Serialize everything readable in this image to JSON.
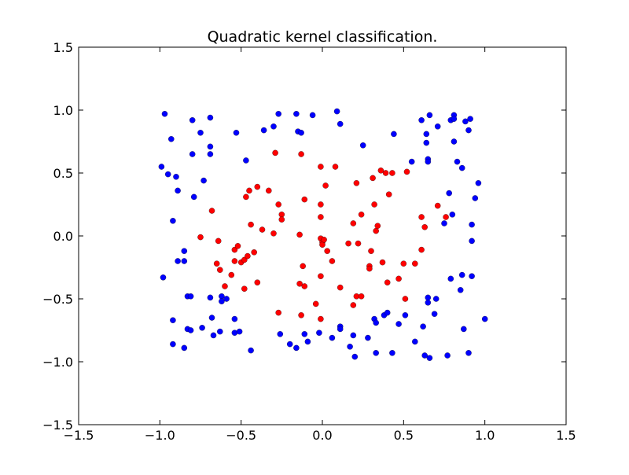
{
  "chart_data": {
    "type": "scatter",
    "title": "Quadratic kernel classification.",
    "xlabel": "",
    "ylabel": "",
    "xlim": [
      -1.5,
      1.5
    ],
    "ylim": [
      -1.5,
      1.5
    ],
    "xticks": [
      -1.5,
      -1.0,
      -0.5,
      0.0,
      0.5,
      1.0,
      1.5
    ],
    "yticks": [
      -1.5,
      -1.0,
      -0.5,
      0.0,
      0.5,
      1.0,
      1.5
    ],
    "xtick_labels": [
      "−1.5",
      "−1.0",
      "−0.5",
      "0.0",
      "0.5",
      "1.0",
      "1.5"
    ],
    "ytick_labels": [
      "−1.5",
      "−1.0",
      "−0.5",
      "0.0",
      "0.5",
      "1.0",
      "1.5"
    ],
    "grid": false,
    "legend": "none",
    "series": [
      {
        "color": "#0000ff",
        "points": [
          [
            -0.97,
            0.97
          ],
          [
            -0.95,
            0.49
          ],
          [
            -0.93,
            0.77
          ],
          [
            -0.9,
            0.47
          ],
          [
            -0.89,
            0.36
          ],
          [
            -0.99,
            0.55
          ],
          [
            -0.8,
            0.92
          ],
          [
            -0.8,
            0.65
          ],
          [
            -0.79,
            0.31
          ],
          [
            -0.75,
            0.82
          ],
          [
            -0.73,
            0.44
          ],
          [
            -0.69,
            0.94
          ],
          [
            -0.69,
            0.71
          ],
          [
            -0.69,
            0.65
          ],
          [
            -0.53,
            0.82
          ],
          [
            -0.47,
            0.6
          ],
          [
            -0.36,
            0.84
          ],
          [
            -0.3,
            0.87
          ],
          [
            -0.27,
            0.97
          ],
          [
            -0.16,
            0.97
          ],
          [
            -0.15,
            0.83
          ],
          [
            -0.13,
            0.82
          ],
          [
            -0.06,
            0.96
          ],
          [
            0.09,
            0.99
          ],
          [
            0.11,
            0.89
          ],
          [
            0.25,
            0.72
          ],
          [
            0.44,
            0.81
          ],
          [
            0.55,
            0.59
          ],
          [
            0.61,
            0.92
          ],
          [
            0.64,
            0.81
          ],
          [
            0.64,
            0.74
          ],
          [
            0.65,
            0.61
          ],
          [
            0.65,
            0.59
          ],
          [
            0.66,
            0.96
          ],
          [
            0.71,
            0.87
          ],
          [
            0.79,
            0.92
          ],
          [
            0.81,
            0.96
          ],
          [
            0.81,
            0.93
          ],
          [
            0.81,
            0.75
          ],
          [
            0.83,
            0.59
          ],
          [
            0.86,
            0.54
          ],
          [
            0.88,
            0.91
          ],
          [
            0.9,
            0.84
          ],
          [
            0.91,
            0.93
          ],
          [
            0.94,
            0.3
          ],
          [
            0.96,
            0.42
          ],
          [
            0.78,
            0.34
          ],
          [
            0.8,
            0.17
          ],
          [
            0.75,
            0.1
          ],
          [
            0.92,
            0.09
          ],
          [
            0.92,
            -0.04
          ],
          [
            -0.92,
            0.12
          ],
          [
            -0.98,
            -0.33
          ],
          [
            -0.89,
            -0.2
          ],
          [
            -0.85,
            -0.12
          ],
          [
            -0.85,
            -0.2
          ],
          [
            -0.83,
            -0.48
          ],
          [
            -0.81,
            -0.48
          ],
          [
            -0.92,
            -0.67
          ],
          [
            -0.92,
            -0.86
          ],
          [
            -0.85,
            -0.89
          ],
          [
            -0.83,
            -0.74
          ],
          [
            -0.81,
            -0.75
          ],
          [
            -0.74,
            -0.73
          ],
          [
            -0.69,
            -0.49
          ],
          [
            -0.68,
            -0.65
          ],
          [
            -0.67,
            -0.79
          ],
          [
            -0.63,
            -0.76
          ],
          [
            -0.62,
            -0.48
          ],
          [
            -0.62,
            -0.52
          ],
          [
            -0.59,
            -0.5
          ],
          [
            -0.54,
            -0.66
          ],
          [
            -0.54,
            -0.77
          ],
          [
            -0.51,
            -0.76
          ],
          [
            -0.44,
            -0.91
          ],
          [
            -0.26,
            -0.78
          ],
          [
            -0.2,
            -0.86
          ],
          [
            -0.16,
            -0.89
          ],
          [
            -0.11,
            -0.78
          ],
          [
            -0.09,
            -0.84
          ],
          [
            -0.02,
            -0.77
          ],
          [
            0.06,
            -0.81
          ],
          [
            0.11,
            -0.72
          ],
          [
            0.11,
            -0.74
          ],
          [
            0.17,
            -0.88
          ],
          [
            0.19,
            -0.79
          ],
          [
            0.2,
            -0.96
          ],
          [
            0.28,
            -0.81
          ],
          [
            0.32,
            -0.66
          ],
          [
            0.33,
            -0.69
          ],
          [
            0.33,
            -0.93
          ],
          [
            0.38,
            -0.63
          ],
          [
            0.4,
            -0.61
          ],
          [
            0.43,
            -0.93
          ],
          [
            0.47,
            -0.7
          ],
          [
            0.51,
            -0.63
          ],
          [
            0.57,
            -0.84
          ],
          [
            0.62,
            -0.72
          ],
          [
            0.63,
            -0.95
          ],
          [
            0.65,
            -0.49
          ],
          [
            0.65,
            -0.53
          ],
          [
            0.66,
            -0.97
          ],
          [
            0.69,
            -0.62
          ],
          [
            0.7,
            -0.5
          ],
          [
            0.77,
            -0.95
          ],
          [
            0.79,
            -0.34
          ],
          [
            0.85,
            -0.43
          ],
          [
            0.86,
            -0.31
          ],
          [
            0.87,
            -0.74
          ],
          [
            0.9,
            -0.93
          ],
          [
            0.92,
            -0.32
          ],
          [
            1.0,
            -0.66
          ]
        ]
      },
      {
        "color": "#ff0000",
        "points": [
          [
            -0.29,
            0.66
          ],
          [
            -0.13,
            0.65
          ],
          [
            -0.68,
            0.2
          ],
          [
            -0.47,
            0.31
          ],
          [
            -0.45,
            0.36
          ],
          [
            -0.4,
            0.39
          ],
          [
            -0.33,
            0.36
          ],
          [
            -0.27,
            0.25
          ],
          [
            -0.25,
            0.17
          ],
          [
            -0.25,
            0.13
          ],
          [
            -0.11,
            0.29
          ],
          [
            -0.01,
            0.55
          ],
          [
            0.08,
            0.55
          ],
          [
            0.02,
            0.4
          ],
          [
            -0.01,
            0.25
          ],
          [
            -0.01,
            0.15
          ],
          [
            0.21,
            0.42
          ],
          [
            0.24,
            0.17
          ],
          [
            0.31,
            0.46
          ],
          [
            0.32,
            0.25
          ],
          [
            0.33,
            0.04
          ],
          [
            0.34,
            0.08
          ],
          [
            0.36,
            0.52
          ],
          [
            0.39,
            0.5
          ],
          [
            0.43,
            0.5
          ],
          [
            0.41,
            0.33
          ],
          [
            0.52,
            0.51
          ],
          [
            0.61,
            0.15
          ],
          [
            0.63,
            0.07
          ],
          [
            0.71,
            0.24
          ],
          [
            0.76,
            0.15
          ],
          [
            -0.44,
            0.09
          ],
          [
            -0.37,
            0.05
          ],
          [
            -0.3,
            0.02
          ],
          [
            -0.14,
            0.01
          ],
          [
            0.19,
            0.1
          ],
          [
            -0.64,
            -0.04
          ],
          [
            -0.75,
            -0.01
          ],
          [
            -0.54,
            -0.11
          ],
          [
            -0.54,
            -0.2
          ],
          [
            -0.52,
            -0.08
          ],
          [
            -0.5,
            -0.21
          ],
          [
            -0.48,
            -0.19
          ],
          [
            -0.46,
            -0.16
          ],
          [
            -0.42,
            -0.13
          ],
          [
            -0.65,
            -0.22
          ],
          [
            -0.63,
            -0.27
          ],
          [
            -0.6,
            -0.4
          ],
          [
            -0.56,
            -0.31
          ],
          [
            -0.48,
            -0.42
          ],
          [
            -0.4,
            -0.37
          ],
          [
            -0.27,
            -0.61
          ],
          [
            -0.13,
            -0.63
          ],
          [
            -0.14,
            -0.38
          ],
          [
            -0.12,
            -0.24
          ],
          [
            -0.11,
            -0.4
          ],
          [
            -0.04,
            -0.54
          ],
          [
            -0.01,
            -0.32
          ],
          [
            -0.01,
            -0.66
          ],
          [
            -0.01,
            -0.02
          ],
          [
            0.0,
            -0.05
          ],
          [
            0.0,
            -0.07
          ],
          [
            0.01,
            -0.03
          ],
          [
            0.03,
            -0.12
          ],
          [
            0.06,
            -0.2
          ],
          [
            0.11,
            -0.41
          ],
          [
            0.16,
            -0.06
          ],
          [
            0.19,
            -0.55
          ],
          [
            0.21,
            -0.48
          ],
          [
            0.22,
            -0.06
          ],
          [
            0.24,
            -0.48
          ],
          [
            0.29,
            -0.24
          ],
          [
            0.29,
            -0.26
          ],
          [
            0.3,
            -0.12
          ],
          [
            0.37,
            -0.21
          ],
          [
            0.4,
            -0.37
          ],
          [
            0.47,
            -0.34
          ],
          [
            0.5,
            -0.22
          ],
          [
            0.51,
            -0.5
          ],
          [
            0.57,
            -0.22
          ],
          [
            0.61,
            -0.11
          ]
        ]
      }
    ]
  }
}
